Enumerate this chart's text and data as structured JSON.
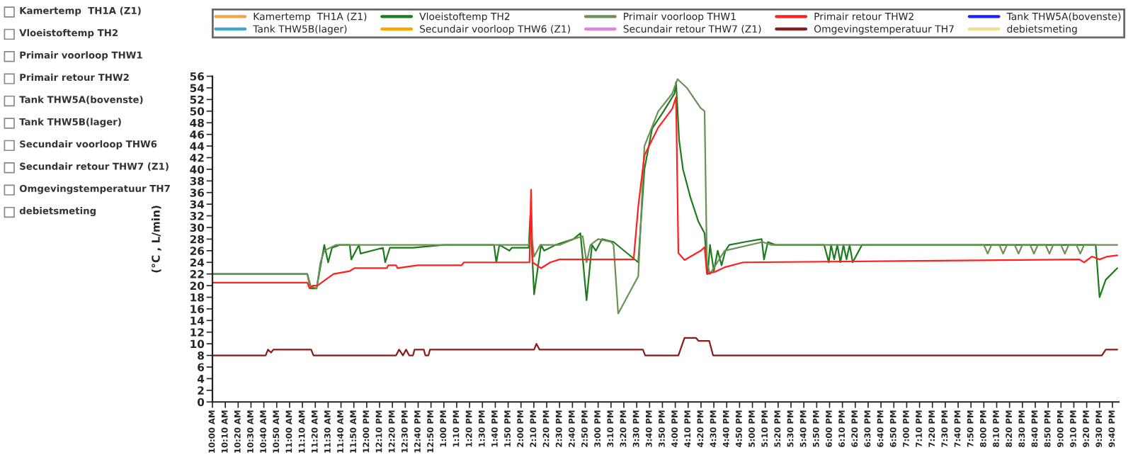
{
  "chart_data": {
    "type": "line",
    "ylabel": "(°C , L/min)",
    "xlim": [
      10,
      21.75
    ],
    "ylim": [
      0,
      56
    ],
    "yticks": [
      0,
      2,
      4,
      6,
      8,
      10,
      12,
      14,
      16,
      18,
      20,
      22,
      24,
      26,
      28,
      30,
      32,
      34,
      36,
      38,
      40,
      42,
      44,
      46,
      48,
      50,
      52,
      54,
      56
    ],
    "xticks": [
      {
        "value": 10,
        "label": "10:00 AM"
      },
      {
        "value": 10.1667,
        "label": "10:10 AM"
      },
      {
        "value": 10.3333,
        "label": "10:20 AM"
      },
      {
        "value": 10.5,
        "label": "10:30 AM"
      },
      {
        "value": 10.6667,
        "label": "10:40 AM"
      },
      {
        "value": 10.8333,
        "label": "10:50 AM"
      },
      {
        "value": 11,
        "label": "11:00 AM"
      },
      {
        "value": 11.1667,
        "label": "11:10 AM"
      },
      {
        "value": 11.3333,
        "label": "11:20 AM"
      },
      {
        "value": 11.5,
        "label": "11:30 AM"
      },
      {
        "value": 11.6667,
        "label": "11:40 AM"
      },
      {
        "value": 11.8333,
        "label": "11:50 AM"
      },
      {
        "value": 12,
        "label": "12:00 PM"
      },
      {
        "value": 12.1667,
        "label": "12:10 PM"
      },
      {
        "value": 12.3333,
        "label": "12:20 PM"
      },
      {
        "value": 12.5,
        "label": "12:30 PM"
      },
      {
        "value": 12.6667,
        "label": "12:40 PM"
      },
      {
        "value": 12.8333,
        "label": "12:50 PM"
      },
      {
        "value": 13,
        "label": "1:00 PM"
      },
      {
        "value": 13.1667,
        "label": "1:10 PM"
      },
      {
        "value": 13.3333,
        "label": "1:20 PM"
      },
      {
        "value": 13.5,
        "label": "1:30 PM"
      },
      {
        "value": 13.6667,
        "label": "1:40 PM"
      },
      {
        "value": 13.8333,
        "label": "1:50 PM"
      },
      {
        "value": 14,
        "label": "2:00 PM"
      },
      {
        "value": 14.1667,
        "label": "2:10 PM"
      },
      {
        "value": 14.3333,
        "label": "2:20 PM"
      },
      {
        "value": 14.5,
        "label": "2:30 PM"
      },
      {
        "value": 14.6667,
        "label": "2:40 PM"
      },
      {
        "value": 14.8333,
        "label": "2:50 PM"
      },
      {
        "value": 15,
        "label": "3:00 PM"
      },
      {
        "value": 15.1667,
        "label": "3:10 PM"
      },
      {
        "value": 15.3333,
        "label": "3:20 PM"
      },
      {
        "value": 15.5,
        "label": "3:30 PM"
      },
      {
        "value": 15.6667,
        "label": "3:40 PM"
      },
      {
        "value": 15.8333,
        "label": "3:50 PM"
      },
      {
        "value": 16,
        "label": "4:00 PM"
      },
      {
        "value": 16.1667,
        "label": "4:10 PM"
      },
      {
        "value": 16.3333,
        "label": "4:20 PM"
      },
      {
        "value": 16.5,
        "label": "4:30 PM"
      },
      {
        "value": 16.6667,
        "label": "4:40 PM"
      },
      {
        "value": 16.8333,
        "label": "4:50 PM"
      },
      {
        "value": 17,
        "label": "5:00 PM"
      },
      {
        "value": 17.1667,
        "label": "5:10 PM"
      },
      {
        "value": 17.3333,
        "label": "5:20 PM"
      },
      {
        "value": 17.5,
        "label": "5:30 PM"
      },
      {
        "value": 17.6667,
        "label": "5:40 PM"
      },
      {
        "value": 17.8333,
        "label": "5:50 PM"
      },
      {
        "value": 18,
        "label": "6:00 PM"
      },
      {
        "value": 18.1667,
        "label": "6:10 PM"
      },
      {
        "value": 18.3333,
        "label": "6:20 PM"
      },
      {
        "value": 18.5,
        "label": "6:30 PM"
      },
      {
        "value": 18.6667,
        "label": "6:40 PM"
      },
      {
        "value": 18.8333,
        "label": "6:50 PM"
      },
      {
        "value": 19,
        "label": "7:00 PM"
      },
      {
        "value": 19.1667,
        "label": "7:10 PM"
      },
      {
        "value": 19.3333,
        "label": "7:20 PM"
      },
      {
        "value": 19.5,
        "label": "7:30 PM"
      },
      {
        "value": 19.6667,
        "label": "7:40 PM"
      },
      {
        "value": 19.8333,
        "label": "7:50 PM"
      },
      {
        "value": 20,
        "label": "8:00 PM"
      },
      {
        "value": 20.1667,
        "label": "8:10 PM"
      },
      {
        "value": 20.3333,
        "label": "8:20 PM"
      },
      {
        "value": 20.5,
        "label": "8:30 PM"
      },
      {
        "value": 20.6667,
        "label": "8:40 PM"
      },
      {
        "value": 20.8333,
        "label": "8:50 PM"
      },
      {
        "value": 21,
        "label": "9:00 PM"
      },
      {
        "value": 21.1667,
        "label": "9:10 PM"
      },
      {
        "value": 21.3333,
        "label": "9:20 PM"
      },
      {
        "value": 21.5,
        "label": "9:30 PM"
      },
      {
        "value": 21.6667,
        "label": "9:40 PM"
      }
    ],
    "grid": false,
    "legend": "top",
    "marker": "none",
    "line_style": "solid",
    "annotations": [
      "Kamertemp  TH1A (Z1)",
      "Vloeistoftemp TH2",
      "Primair voorloop THW1",
      "Primair retour THW2",
      "Tank THW5A(bovenste)",
      "Tank THW5B(lager)",
      "Secundair voorloop THW6",
      "Secundair retour THW7 (Z1)",
      "Omgevingstemperatuur TH7",
      "debietsmeting"
    ],
    "series": [
      {
        "name": "Kamertemp  TH1A (Z1)",
        "color": "#f4a442"
      },
      {
        "name": "Vloeistoftemp TH2",
        "color": "#1e7b1e",
        "x": [
          10,
          11.23,
          11.28,
          11.35,
          11.45,
          11.5,
          11.55,
          11.65,
          11.78,
          11.8,
          11.9,
          11.92,
          12.21,
          12.24,
          12.3,
          12.6,
          13.0,
          13.65,
          13.68,
          13.72,
          13.85,
          13.88,
          14.0,
          14.1,
          14.12,
          14.17,
          14.26,
          14.3,
          14.45,
          14.68,
          14.77,
          14.85,
          14.92,
          14.97,
          15.05,
          15.2,
          15.52,
          15.6,
          15.7,
          15.85,
          15.99,
          16.01,
          16.05,
          16.1,
          16.2,
          16.3,
          16.38,
          16.42,
          16.45,
          16.5,
          16.55,
          16.6,
          16.65,
          16.7,
          16.9,
          17.12,
          17.15,
          17.2,
          17.3,
          17.93,
          17.99,
          18.02,
          18.06,
          18.1,
          18.14,
          18.18,
          18.22,
          18.26,
          18.3,
          18.42,
          21.45,
          21.5,
          21.58,
          21.73
        ],
        "values": [
          22,
          22,
          19.5,
          19.5,
          27,
          24,
          26.5,
          27,
          27,
          24.5,
          27,
          25.5,
          26.5,
          24,
          26.5,
          26.5,
          27,
          27,
          24,
          27,
          26,
          26.5,
          26.5,
          26.5,
          32,
          18.5,
          27,
          26,
          27,
          28,
          29,
          17.5,
          27,
          26,
          28,
          27.5,
          24,
          40,
          47,
          50,
          53,
          55,
          45,
          40,
          35,
          31,
          29,
          22,
          27,
          22.5,
          26,
          23.5,
          26,
          27,
          27.5,
          28,
          24.5,
          27.5,
          27,
          27,
          24,
          27,
          24.5,
          27,
          24,
          27,
          24.5,
          27,
          24,
          27,
          27,
          18,
          21,
          23
        ]
      },
      {
        "name": "Primair voorloop THW1",
        "color": "#6b9156",
        "x": [
          10,
          11.23,
          11.26,
          11.35,
          11.4,
          11.45,
          11.6,
          14.1,
          14.13,
          14.17,
          14.25,
          14.5,
          14.68,
          14.8,
          14.85,
          14.9,
          15.0,
          15.17,
          15.2,
          15.26,
          15.52,
          15.6,
          15.78,
          15.96,
          16.03,
          16.15,
          16.33,
          16.38,
          16.41,
          16.45,
          16.64,
          17.13,
          17.25,
          20.0,
          20.05,
          20.1,
          20.2,
          20.25,
          20.3,
          20.4,
          20.45,
          20.5,
          20.6,
          20.65,
          20.7,
          20.8,
          20.85,
          20.9,
          21.0,
          21.05,
          21.1,
          21.2,
          21.25,
          21.3,
          21.42,
          21.73
        ],
        "values": [
          22,
          22,
          20,
          19.5,
          24,
          26,
          27,
          27,
          29,
          25,
          27,
          27,
          28,
          28.5,
          24,
          27,
          28,
          27.5,
          27,
          15.2,
          21.6,
          44,
          50,
          53,
          55.5,
          54,
          50.5,
          50,
          24,
          22,
          26,
          27.5,
          27,
          27,
          25.5,
          27,
          27,
          25.5,
          27,
          27,
          25.5,
          27,
          27,
          25.5,
          27,
          27,
          25.5,
          27,
          27,
          25.5,
          27,
          27,
          25.5,
          27,
          27,
          27
        ]
      },
      {
        "name": "Primair retour THW2",
        "color": "#ff2020",
        "x": [
          10,
          11.23,
          11.26,
          11.3,
          11.36,
          11.57,
          11.78,
          11.84,
          12.26,
          12.28,
          12.38,
          12.4,
          12.66,
          13.23,
          13.26,
          14.11,
          14.13,
          14.15,
          14.26,
          14.38,
          14.5,
          15.46,
          15.52,
          15.6,
          15.78,
          15.96,
          16.01,
          16.04,
          16.12,
          16.33,
          16.38,
          16.41,
          16.52,
          16.65,
          16.88,
          21.24,
          21.3,
          21.4,
          21.5,
          21.6,
          21.73
        ],
        "values": [
          20.5,
          20.5,
          19.5,
          20,
          20,
          22,
          22.5,
          23,
          23,
          23.5,
          23.5,
          23,
          23.5,
          23.5,
          24,
          24,
          36.5,
          24,
          23,
          24,
          24.5,
          24.5,
          33.6,
          42.4,
          47.2,
          50.4,
          52.4,
          25.6,
          24.4,
          26,
          26.6,
          22,
          22.4,
          23.2,
          24,
          24.5,
          24,
          25,
          24.5,
          25,
          25.2
        ]
      },
      {
        "name": "Tank THW5A(bovenste)",
        "color": "#2020ff"
      },
      {
        "name": "Tank THW5B(lager)",
        "color": "#3fa7c8"
      },
      {
        "name": "Secundair voorloop THW6 (Z1)",
        "color": "#ffa500"
      },
      {
        "name": "Secundair retour THW7 (Z1)",
        "color": "#e47fe4"
      },
      {
        "name": "Omgevingstemperatuur TH7",
        "color": "#8b1a1a",
        "x": [
          10,
          10.69,
          10.72,
          10.76,
          10.79,
          11.28,
          11.31,
          12.38,
          12.42,
          12.47,
          12.51,
          12.55,
          12.6,
          12.62,
          12.74,
          12.76,
          12.8,
          12.82,
          14.17,
          14.2,
          14.24,
          15.58,
          15.61,
          16.04,
          16.12,
          16.27,
          16.3,
          16.44,
          16.49,
          21.53,
          21.58,
          21.73
        ],
        "values": [
          8,
          8,
          9,
          8.5,
          9,
          9,
          8,
          8,
          9,
          8,
          9,
          8,
          8,
          9,
          9,
          8,
          8,
          9,
          9,
          10,
          9,
          9,
          8,
          8,
          11,
          11,
          10.5,
          10.5,
          8,
          8,
          9,
          9
        ]
      },
      {
        "name": "debietsmeting",
        "color": "#eee08a"
      }
    ]
  }
}
